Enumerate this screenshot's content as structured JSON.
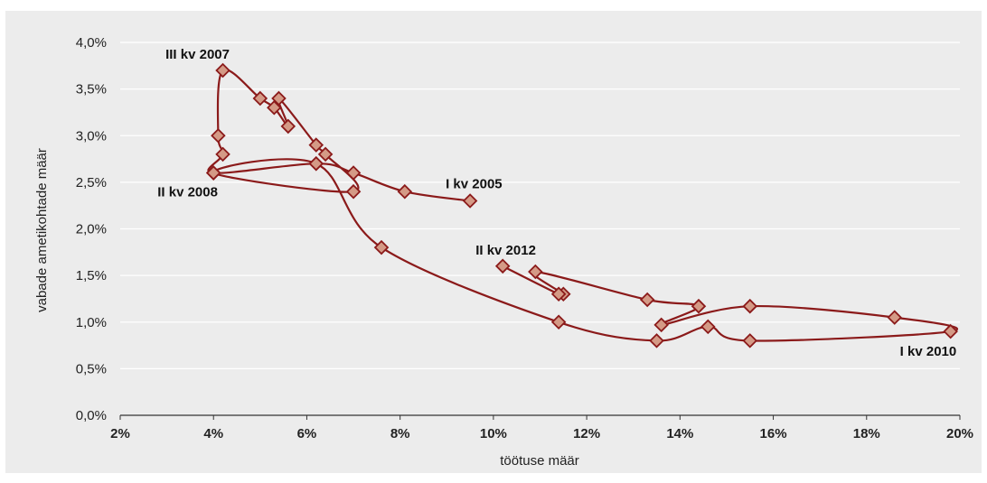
{
  "chart_data": {
    "type": "scatter",
    "xlabel": "töötuse määr",
    "ylabel": "vabade ametikohtade määr",
    "xlim": [
      2,
      20
    ],
    "ylim": [
      0,
      4
    ],
    "x_ticks": [
      "2%",
      "4%",
      "6%",
      "8%",
      "10%",
      "12%",
      "14%",
      "16%",
      "18%",
      "20%"
    ],
    "y_ticks": [
      "0,0%",
      "0,5%",
      "1,0%",
      "1,5%",
      "2,0%",
      "2,5%",
      "3,0%",
      "3,5%",
      "4,0%"
    ],
    "grid": "horizontal",
    "colors": {
      "line": "#8b1a1a",
      "marker_fill": "#d49a86",
      "marker_edge": "#8b1a1a"
    },
    "series": [
      {
        "points": [
          {
            "x": 9.5,
            "y": 2.3
          },
          {
            "x": 8.1,
            "y": 2.4
          },
          {
            "x": 7.0,
            "y": 2.6
          },
          {
            "x": 6.2,
            "y": 2.7
          },
          {
            "x": 4.0,
            "y": 2.6
          },
          {
            "x": 4.2,
            "y": 2.8
          },
          {
            "x": 4.1,
            "y": 3.0
          },
          {
            "x": 4.2,
            "y": 3.7
          },
          {
            "x": 5.0,
            "y": 3.4
          },
          {
            "x": 5.3,
            "y": 3.3
          },
          {
            "x": 5.6,
            "y": 3.1
          },
          {
            "x": 5.4,
            "y": 3.4
          },
          {
            "x": 6.2,
            "y": 2.9
          },
          {
            "x": 6.4,
            "y": 2.8
          },
          {
            "x": 7.0,
            "y": 2.4
          },
          {
            "x": 4.0,
            "y": 2.6
          },
          {
            "x": 6.2,
            "y": 2.7
          },
          {
            "x": 7.6,
            "y": 1.8
          },
          {
            "x": 11.4,
            "y": 1.0
          },
          {
            "x": 13.5,
            "y": 0.8
          },
          {
            "x": 14.6,
            "y": 0.95
          },
          {
            "x": 15.5,
            "y": 0.8
          },
          {
            "x": 19.8,
            "y": 0.9
          },
          {
            "x": 18.6,
            "y": 1.05
          },
          {
            "x": 15.5,
            "y": 1.17
          },
          {
            "x": 13.6,
            "y": 0.97
          },
          {
            "x": 14.4,
            "y": 1.17
          },
          {
            "x": 13.3,
            "y": 1.24
          },
          {
            "x": 10.9,
            "y": 1.54
          },
          {
            "x": 11.5,
            "y": 1.3
          },
          {
            "x": 11.4,
            "y": 1.3
          },
          {
            "x": 10.2,
            "y": 1.6
          }
        ]
      }
    ],
    "annotations": [
      {
        "text": "III kv 2007",
        "x": 4.2,
        "y": 3.7
      },
      {
        "text": "II kv 2008",
        "x": 4.0,
        "y": 2.6
      },
      {
        "text": "I kv 2005",
        "x": 9.5,
        "y": 2.3
      },
      {
        "text": "II kv 2012",
        "x": 10.2,
        "y": 1.6
      },
      {
        "text": "I kv 2010",
        "x": 19.8,
        "y": 0.9
      }
    ]
  }
}
